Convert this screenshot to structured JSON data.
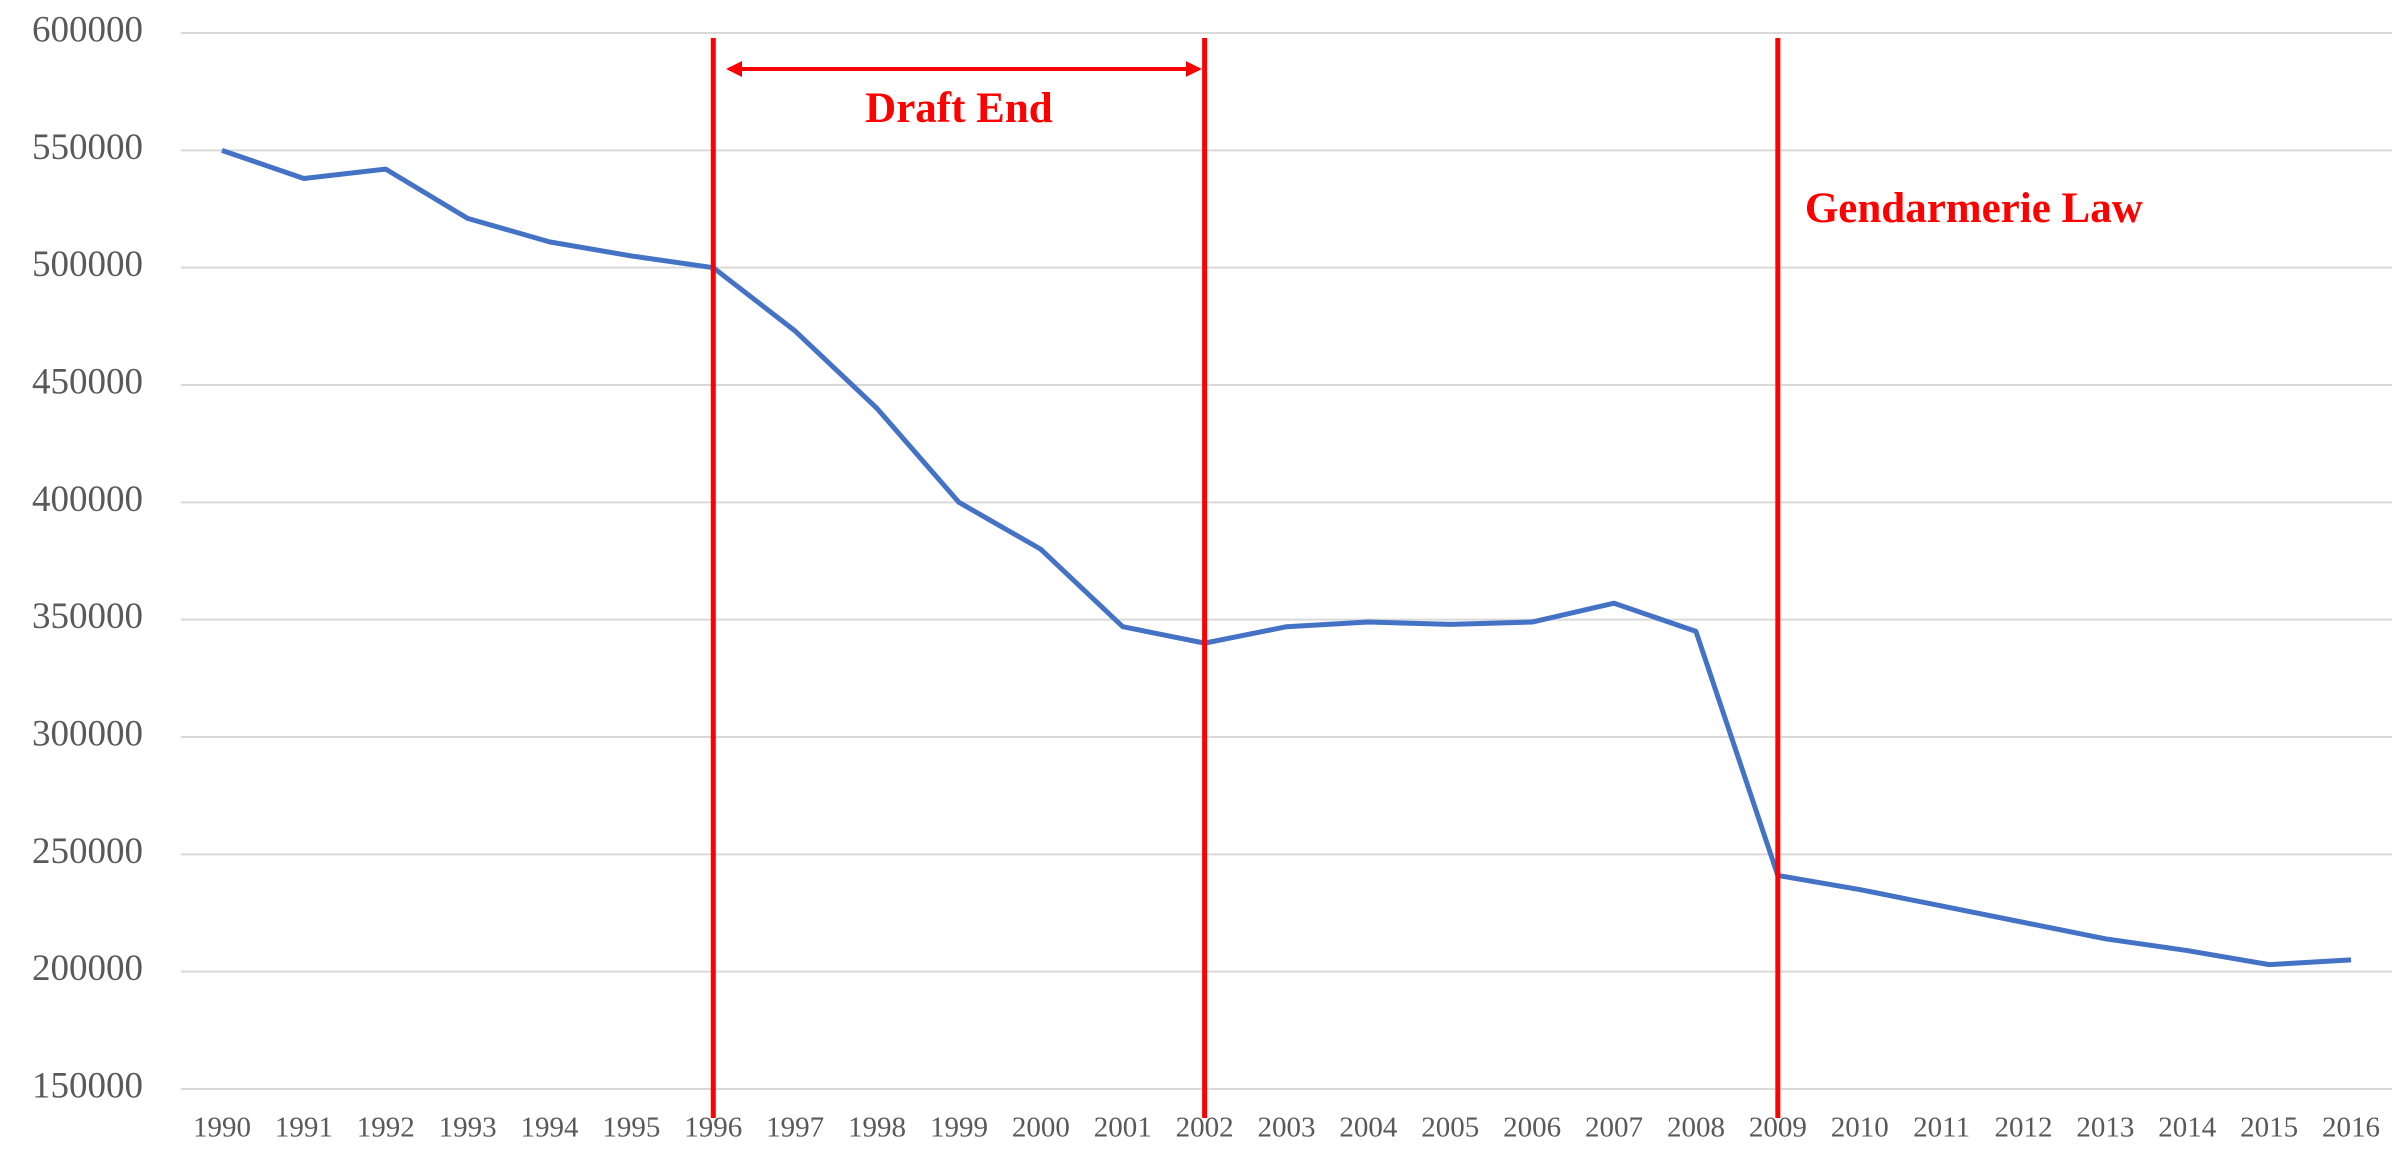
{
  "chart_data": {
    "type": "line",
    "x": [
      1990,
      1991,
      1992,
      1993,
      1994,
      1995,
      1996,
      1997,
      1998,
      1999,
      2000,
      2001,
      2002,
      2003,
      2004,
      2005,
      2006,
      2007,
      2008,
      2009,
      2010,
      2011,
      2012,
      2013,
      2014,
      2015,
      2016
    ],
    "series": [
      {
        "color": "#4472c4",
        "values": [
          550000,
          538000,
          542000,
          521000,
          511000,
          505000,
          500000,
          473000,
          440000,
          400000,
          380000,
          347000,
          340000,
          347000,
          349000,
          348000,
          349000,
          357000,
          345000,
          241000,
          235000,
          228000,
          221000,
          214000,
          209000,
          203000,
          205000
        ]
      }
    ],
    "xlim": [
      1989.5,
      2016.5
    ],
    "xticks": [
      1990,
      1991,
      1992,
      1993,
      1994,
      1995,
      1996,
      1997,
      1998,
      1999,
      2000,
      2001,
      2002,
      2003,
      2004,
      2005,
      2006,
      2007,
      2008,
      2009,
      2010,
      2011,
      2012,
      2013,
      2014,
      2015,
      2016
    ],
    "ylim": [
      150000,
      600000
    ],
    "yticks": [
      150000,
      200000,
      250000,
      300000,
      350000,
      400000,
      450000,
      500000,
      550000,
      600000
    ],
    "grid": true,
    "vlines": {
      "color": "#ff0000",
      "x": [
        1996,
        2002,
        2009
      ]
    },
    "annotations": [
      {
        "text": "Draft End",
        "from": 1996,
        "to": 2002
      },
      {
        "text": "Gendarmerie Law",
        "at": 2009
      }
    ]
  }
}
